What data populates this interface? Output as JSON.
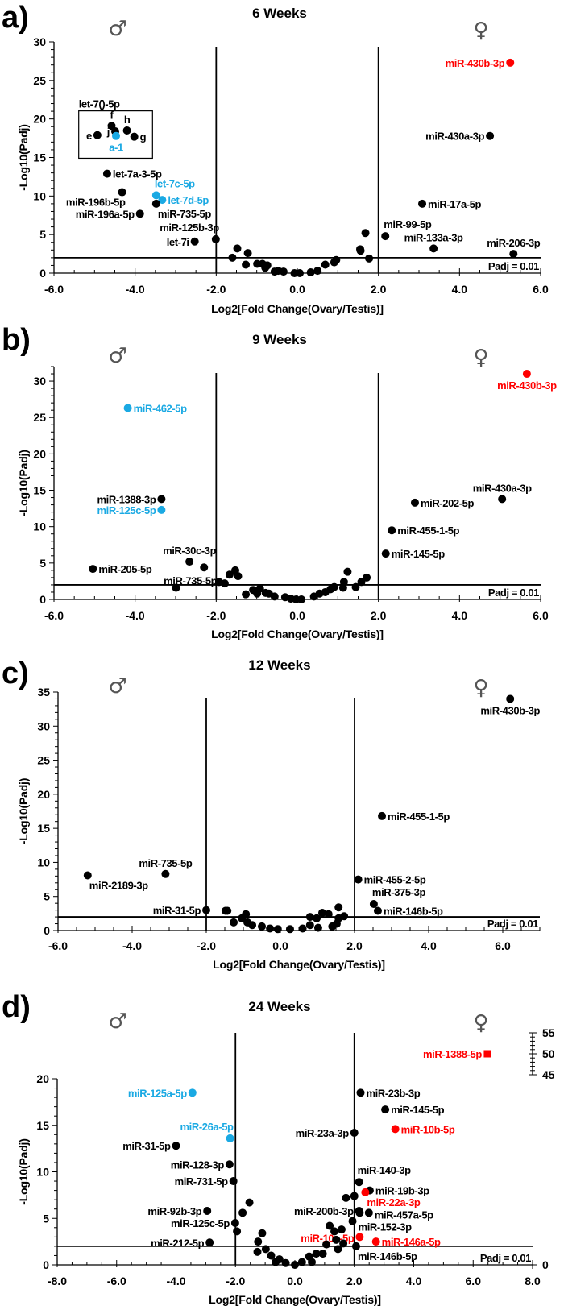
{
  "colors": {
    "default": "#000000",
    "blue": "#1aa9e3",
    "red": "#ff0000"
  },
  "chart_data": [
    {
      "type": "scatter",
      "panel_letter": "a)",
      "title": "6 Weeks",
      "xlabel": "Log2[Fold Change(Ovary/Testis)]",
      "ylabel": "-Log10(Padj)",
      "xlim": [
        -6,
        6
      ],
      "ylim": [
        0,
        30
      ],
      "xticks": [
        "-6.0",
        "-4.0",
        "-2.0",
        "0.0",
        "2.0",
        "4.0",
        "6.0"
      ],
      "yticks": [
        "0",
        "5",
        "10",
        "15",
        "20",
        "25",
        "30"
      ],
      "fold_change_cutoffs": [
        -2,
        2
      ],
      "threshold_y": 2,
      "threshold_label": "Padj = 0.01",
      "male_symbol": "♂",
      "female_symbol": "♀",
      "group_box": {
        "label": "let-7()-5p",
        "x": [
          -5.39,
          -3.57
        ],
        "y": [
          14.9,
          21.05
        ]
      },
      "points": [
        {
          "x": 5.25,
          "y": 27.3,
          "label": "miR-430b-3p",
          "color": "red",
          "pos": "l"
        },
        {
          "x": 4.75,
          "y": 17.8,
          "label": "miR-430a-3p",
          "pos": "l"
        },
        {
          "x": 3.08,
          "y": 9.0,
          "label": "miR-17a-5p",
          "pos": "r"
        },
        {
          "x": 2.17,
          "y": 4.8,
          "label": "miR-99-5p",
          "pos": "tr"
        },
        {
          "x": 3.36,
          "y": 3.2,
          "label": "miR-133a-3p",
          "pos": "t"
        },
        {
          "x": 5.33,
          "y": 2.5,
          "label": "miR-206-3p",
          "pos": "t"
        },
        {
          "x": -4.58,
          "y": 19.1,
          "label": "f",
          "pos": "t"
        },
        {
          "x": -4.2,
          "y": 18.5,
          "label": "h",
          "pos": "t"
        },
        {
          "x": -4.49,
          "y": 18.4,
          "label": "j",
          "pos": "l"
        },
        {
          "x": -4.93,
          "y": 17.9,
          "label": "e",
          "pos": "l"
        },
        {
          "x": -4.02,
          "y": 17.7,
          "label": "g",
          "pos": "r"
        },
        {
          "x": -4.47,
          "y": 17.8,
          "label": "a-1",
          "color": "blue",
          "pos": "b"
        },
        {
          "x": -4.69,
          "y": 12.9,
          "label": "let-7a-3-5p",
          "pos": "r"
        },
        {
          "x": -4.32,
          "y": 10.5,
          "label": "miR-196b-5p",
          "pos": "bl"
        },
        {
          "x": -3.88,
          "y": 7.7,
          "label": "miR-196a-5p",
          "pos": "l"
        },
        {
          "x": -3.48,
          "y": 10.1,
          "label": "let-7c-5p",
          "color": "blue",
          "pos": "tr"
        },
        {
          "x": -3.33,
          "y": 9.5,
          "label": "let-7d-5p",
          "color": "blue",
          "pos": "r"
        },
        {
          "x": -3.48,
          "y": 9.0,
          "label": "miR-735-5p",
          "pos": "br"
        },
        {
          "x": -2.01,
          "y": 4.4,
          "label": "miR-125b-3p",
          "pos": "tl"
        },
        {
          "x": -2.53,
          "y": 4.1,
          "label": "let-7i",
          "pos": "l"
        },
        {
          "x": -1.6,
          "y": 2.0
        },
        {
          "x": -1.48,
          "y": 3.2
        },
        {
          "x": -1.22,
          "y": 2.6
        },
        {
          "x": -1.27,
          "y": 1.1
        },
        {
          "x": -0.99,
          "y": 1.2
        },
        {
          "x": -0.86,
          "y": 1.2
        },
        {
          "x": -0.79,
          "y": 0.7
        },
        {
          "x": -0.74,
          "y": 1.0
        },
        {
          "x": -0.56,
          "y": 0.2
        },
        {
          "x": -0.47,
          "y": 0.3
        },
        {
          "x": -0.34,
          "y": 0.2
        },
        {
          "x": -0.07,
          "y": 0.0
        },
        {
          "x": 0.06,
          "y": 0.0
        },
        {
          "x": 0.33,
          "y": 0.1
        },
        {
          "x": 0.5,
          "y": 0.3
        },
        {
          "x": 0.69,
          "y": 1.1
        },
        {
          "x": 0.91,
          "y": 1.4
        },
        {
          "x": 0.96,
          "y": 1.7
        },
        {
          "x": 1.55,
          "y": 3.1
        },
        {
          "x": 1.56,
          "y": 2.9
        },
        {
          "x": 1.68,
          "y": 5.2
        },
        {
          "x": 1.77,
          "y": 1.9
        }
      ]
    },
    {
      "type": "scatter",
      "panel_letter": "b)",
      "title": "9 Weeks",
      "xlabel": "Log2[Fold Change(Ovary/Testis)]",
      "ylabel": "-Log10(Padj)",
      "xlim": [
        -6,
        6
      ],
      "ylim": [
        0,
        32
      ],
      "xticks": [
        "-6.0",
        "-4.0",
        "-2.0",
        "0.0",
        "2.0",
        "4.0",
        "6.0"
      ],
      "yticks": [
        "0",
        "5",
        "10",
        "15",
        "20",
        "25",
        "30"
      ],
      "fold_change_cutoffs": [
        -2,
        2
      ],
      "threshold_y": 2,
      "threshold_label": "Padj = 0.01",
      "male_symbol": "♂",
      "female_symbol": "♀",
      "points": [
        {
          "x": 5.66,
          "y": 31.0,
          "label": "miR-430b-3p",
          "color": "red",
          "pos": "b"
        },
        {
          "x": -4.18,
          "y": 26.3,
          "label": "miR-462-5p",
          "color": "blue",
          "pos": "r"
        },
        {
          "x": -3.35,
          "y": 13.8,
          "label": "miR-1388-3p",
          "pos": "l"
        },
        {
          "x": -3.35,
          "y": 12.3,
          "label": "miR-125c-5p",
          "color": "blue",
          "pos": "l"
        },
        {
          "x": 5.05,
          "y": 13.8,
          "label": "miR-430a-3p",
          "pos": "t"
        },
        {
          "x": 2.9,
          "y": 13.3,
          "label": "miR-202-5p",
          "pos": "r"
        },
        {
          "x": 2.33,
          "y": 9.5,
          "label": "miR-455-1-5p",
          "pos": "r"
        },
        {
          "x": 2.18,
          "y": 6.3,
          "label": "miR-145-5p",
          "pos": "r"
        },
        {
          "x": -5.04,
          "y": 4.2,
          "label": "miR-205-5p",
          "pos": "r"
        },
        {
          "x": -2.66,
          "y": 5.2,
          "label": "miR-30c-3p",
          "pos": "t"
        },
        {
          "x": -2.3,
          "y": 4.4,
          "label": "miR-735-5p",
          "pos": "bl"
        },
        {
          "x": -2.99,
          "y": 1.6
        },
        {
          "x": -1.93,
          "y": 2.4
        },
        {
          "x": -1.79,
          "y": 2.2
        },
        {
          "x": -1.67,
          "y": 3.4
        },
        {
          "x": -1.53,
          "y": 4.0
        },
        {
          "x": -1.46,
          "y": 3.2
        },
        {
          "x": -1.27,
          "y": 0.7
        },
        {
          "x": -1.09,
          "y": 1.3
        },
        {
          "x": -0.99,
          "y": 0.8
        },
        {
          "x": -0.92,
          "y": 1.5
        },
        {
          "x": -0.78,
          "y": 0.9
        },
        {
          "x": -0.7,
          "y": 0.8
        },
        {
          "x": -0.56,
          "y": 0.4
        },
        {
          "x": -0.3,
          "y": 0.3
        },
        {
          "x": -0.16,
          "y": 0.1
        },
        {
          "x": -0.03,
          "y": 0.0
        },
        {
          "x": 0.1,
          "y": 0.0
        },
        {
          "x": 0.41,
          "y": 0.4
        },
        {
          "x": 0.55,
          "y": 0.8
        },
        {
          "x": 0.69,
          "y": 1.0
        },
        {
          "x": 0.82,
          "y": 1.4
        },
        {
          "x": 0.91,
          "y": 1.7
        },
        {
          "x": 1.13,
          "y": 1.6
        },
        {
          "x": 1.15,
          "y": 2.4
        },
        {
          "x": 1.24,
          "y": 3.8
        },
        {
          "x": 1.44,
          "y": 1.7
        },
        {
          "x": 1.58,
          "y": 2.4
        },
        {
          "x": 1.71,
          "y": 3.0
        }
      ]
    },
    {
      "type": "scatter",
      "panel_letter": "c)",
      "title": "12 Weeks",
      "xlabel": "Log2[Fold Change(Ovary/Testis)]",
      "ylabel": "-Log10(Padj)",
      "xlim": [
        -6,
        7
      ],
      "ylim": [
        0,
        35
      ],
      "xticks": [
        "-6.0",
        "-4.0",
        "-2.0",
        "0.0",
        "2.0",
        "4.0",
        "6.0"
      ],
      "yticks": [
        "0",
        "5",
        "10",
        "15",
        "20",
        "25",
        "30",
        "35"
      ],
      "fold_change_cutoffs": [
        -2,
        2
      ],
      "threshold_y": 2,
      "threshold_label": "Padj = 0.01",
      "male_symbol": "♂",
      "female_symbol": "♀",
      "points": [
        {
          "x": 6.2,
          "y": 34.0,
          "label": "miR-430b-3p",
          "pos": "b"
        },
        {
          "x": 2.74,
          "y": 16.8,
          "label": "miR-455-1-5p",
          "pos": "r"
        },
        {
          "x": 2.1,
          "y": 7.5,
          "label": "miR-455-2-5p",
          "pos": "r"
        },
        {
          "x": -3.1,
          "y": 8.3,
          "label": "miR-735-5p",
          "pos": "t"
        },
        {
          "x": -5.2,
          "y": 8.1,
          "label": "miR-2189-3p",
          "pos": "br"
        },
        {
          "x": -2.0,
          "y": 3.0,
          "label": "miR-31-5p",
          "pos": "l"
        },
        {
          "x": 2.52,
          "y": 3.9,
          "label": "miR-375-3p",
          "pos": "tr"
        },
        {
          "x": 2.63,
          "y": 2.9,
          "label": "miR-146b-5p",
          "pos": "r"
        },
        {
          "x": -1.48,
          "y": 2.9
        },
        {
          "x": -1.43,
          "y": 2.9
        },
        {
          "x": -1.26,
          "y": 1.2
        },
        {
          "x": -1.04,
          "y": 1.8
        },
        {
          "x": -0.93,
          "y": 2.4
        },
        {
          "x": -0.89,
          "y": 1.2
        },
        {
          "x": -0.76,
          "y": 0.8
        },
        {
          "x": -0.5,
          "y": 0.6
        },
        {
          "x": -0.28,
          "y": 0.3
        },
        {
          "x": -0.07,
          "y": 0.2
        },
        {
          "x": 0.26,
          "y": 0.2
        },
        {
          "x": 0.6,
          "y": 0.3
        },
        {
          "x": 0.8,
          "y": 0.8
        },
        {
          "x": 0.8,
          "y": 2.0
        },
        {
          "x": 0.98,
          "y": 1.8
        },
        {
          "x": 1.02,
          "y": 0.4
        },
        {
          "x": 1.13,
          "y": 2.6
        },
        {
          "x": 1.3,
          "y": 2.4
        },
        {
          "x": 1.4,
          "y": 0.6
        },
        {
          "x": 1.52,
          "y": 1.0
        },
        {
          "x": 1.57,
          "y": 1.8
        },
        {
          "x": 1.57,
          "y": 3.4
        },
        {
          "x": 1.72,
          "y": 2.1
        }
      ]
    },
    {
      "type": "scatter",
      "panel_letter": "d)",
      "title": "24 Weeks",
      "xlabel": "Log2[Fold Change(Ovary/Testis)]",
      "ylabel": "-Log10(Padj)",
      "xlim": [
        -8,
        8
      ],
      "ylim": [
        0,
        20
      ],
      "xticks": [
        "-8.0",
        "-6.0",
        "-4.0",
        "-2.0",
        "0.0",
        "2.0",
        "4.0",
        "6.0",
        "8.0"
      ],
      "yticks": [
        "0",
        "5",
        "10",
        "15",
        "20"
      ],
      "right_axis": {
        "ylim": [
          45,
          55
        ],
        "yticks": [
          "45",
          "50",
          "55"
        ],
        "zero_label": "0"
      },
      "fold_change_cutoffs": [
        -2,
        2
      ],
      "threshold_y": 2,
      "threshold_label": "Padj = 0.01",
      "male_symbol": "♂",
      "female_symbol": "♀",
      "points": [
        {
          "x": 6.48,
          "y": 50.0,
          "label": "miR-1388-5p",
          "color": "red",
          "pos": "l",
          "marker": "square",
          "axis": "right"
        },
        {
          "x": -3.45,
          "y": 18.5,
          "label": "miR-125a-5p",
          "color": "blue",
          "pos": "l"
        },
        {
          "x": -2.18,
          "y": 13.6,
          "label": "miR-26a-5p",
          "color": "blue",
          "pos": "tl"
        },
        {
          "x": -4.0,
          "y": 12.8,
          "label": "miR-31-5p",
          "pos": "l"
        },
        {
          "x": -2.2,
          "y": 10.8,
          "label": "miR-128-3p",
          "pos": "l"
        },
        {
          "x": -2.07,
          "y": 9.0,
          "label": "miR-731-5p",
          "pos": "l"
        },
        {
          "x": -2.95,
          "y": 5.8,
          "label": "miR-92b-3p",
          "pos": "l"
        },
        {
          "x": -2.01,
          "y": 4.5,
          "label": "miR-125c-5p",
          "pos": "l"
        },
        {
          "x": -2.87,
          "y": 2.4,
          "label": "miR-212-5p",
          "pos": "l"
        },
        {
          "x": 2.21,
          "y": 18.5,
          "label": "miR-23b-3p",
          "pos": "r"
        },
        {
          "x": 3.04,
          "y": 16.7,
          "label": "miR-145-5p",
          "pos": "r"
        },
        {
          "x": 3.38,
          "y": 14.6,
          "label": "miR-10b-5p",
          "color": "red",
          "pos": "r"
        },
        {
          "x": 2.0,
          "y": 14.2,
          "label": "miR-23a-3p",
          "pos": "l"
        },
        {
          "x": 2.16,
          "y": 8.9,
          "label": "miR-140-3p",
          "pos": "tr"
        },
        {
          "x": 2.52,
          "y": 8.0,
          "label": "miR-19b-3p",
          "pos": "r"
        },
        {
          "x": 2.37,
          "y": 7.8,
          "label": "miR-22a-3p",
          "color": "red",
          "pos": "br"
        },
        {
          "x": 2.16,
          "y": 5.8,
          "label": "miR-200b-3p",
          "pos": "l"
        },
        {
          "x": 2.49,
          "y": 5.6,
          "label": "miR-457a-5p",
          "pos": "r"
        },
        {
          "x": 1.94,
          "y": 4.7,
          "label": "miR-152-3p",
          "pos": "r"
        },
        {
          "x": 2.18,
          "y": 3.0,
          "label": "miR-10a-5p",
          "color": "red",
          "pos": "tr"
        },
        {
          "x": 2.73,
          "y": 2.5,
          "label": "miR-146a-5p",
          "color": "red",
          "pos": "r"
        },
        {
          "x": 2.06,
          "y": 2.0,
          "label": "miR-146b-5p",
          "pos": "br"
        },
        {
          "x": 2.0,
          "y": 7.4
        },
        {
          "x": 1.72,
          "y": 7.2
        },
        {
          "x": 2.18,
          "y": 5.6
        },
        {
          "x": -1.95,
          "y": 3.6
        },
        {
          "x": -1.76,
          "y": 5.6
        },
        {
          "x": -1.53,
          "y": 6.7
        },
        {
          "x": -1.24,
          "y": 2.5
        },
        {
          "x": -1.26,
          "y": 1.4
        },
        {
          "x": -1.1,
          "y": 3.4
        },
        {
          "x": -0.98,
          "y": 1.7
        },
        {
          "x": -0.8,
          "y": 1.0
        },
        {
          "x": -0.65,
          "y": 0.3
        },
        {
          "x": -0.52,
          "y": 0.6
        },
        {
          "x": -0.31,
          "y": 0.2
        },
        {
          "x": 0.0,
          "y": 0.0
        },
        {
          "x": 0.24,
          "y": 0.3
        },
        {
          "x": 0.48,
          "y": 0.9
        },
        {
          "x": 0.57,
          "y": 0.3
        },
        {
          "x": 0.72,
          "y": 1.2
        },
        {
          "x": 0.94,
          "y": 1.2
        },
        {
          "x": 1.06,
          "y": 2.2
        },
        {
          "x": 1.17,
          "y": 4.2
        },
        {
          "x": 1.33,
          "y": 3.6
        },
        {
          "x": 1.39,
          "y": 2.7
        },
        {
          "x": 1.45,
          "y": 1.7
        },
        {
          "x": 1.57,
          "y": 3.8
        },
        {
          "x": 1.63,
          "y": 2.3
        }
      ]
    }
  ]
}
